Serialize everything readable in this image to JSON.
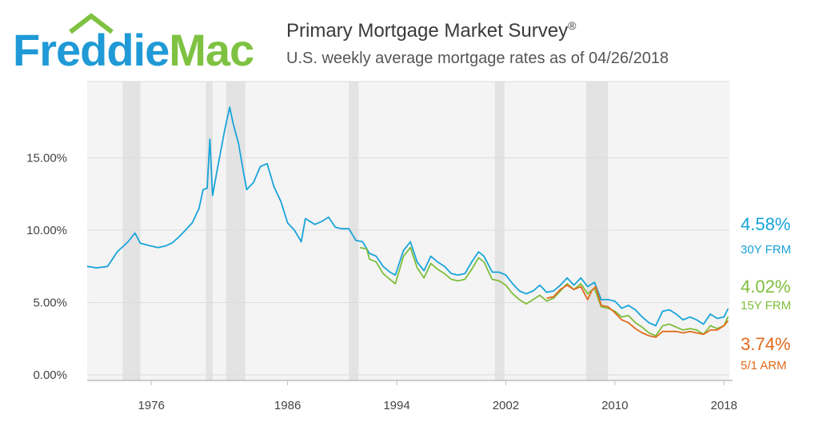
{
  "header": {
    "logo_text": "FreddieMac",
    "title": "Primary Mortgage Market Survey",
    "title_mark": "®",
    "subtitle": "U.S. weekly average mortgage rates as of 04/26/2018"
  },
  "colors": {
    "frm30": "#18a4d9",
    "frm15": "#7fbd3a",
    "arm51": "#e06a1b",
    "recession": "#e3e3e3",
    "logo_green": "#7fc242",
    "logo_blue": "#1f9ad6"
  },
  "latest": [
    {
      "value": "4.58%",
      "label": "30Y FRM",
      "color": "#18a4d9"
    },
    {
      "value": "4.02%",
      "label": "15Y FRM",
      "color": "#7fbd3a"
    },
    {
      "value": "3.74%",
      "label": "5/1 ARM",
      "color": "#e06a1b"
    }
  ],
  "chart_data": {
    "type": "line",
    "title": "Primary Mortgage Market Survey",
    "subtitle": "U.S. weekly average mortgage rates as of 04/26/2018",
    "x_ticks": [
      "1976",
      "1986",
      "1994",
      "2002",
      "2010",
      "2018"
    ],
    "y_ticks": [
      "0.00%",
      "5.00%",
      "10.00%",
      "15.00%"
    ],
    "xlim": [
      1971.3,
      2018.4
    ],
    "ylim": [
      0,
      20
    ],
    "recessions": [
      [
        1973.9,
        1975.2
      ],
      [
        1980.0,
        1980.5
      ],
      [
        1981.5,
        1982.9
      ],
      [
        1990.5,
        1991.2
      ],
      [
        2001.2,
        2001.9
      ],
      [
        2007.9,
        2009.5
      ]
    ],
    "series": [
      {
        "name": "30Y FRM",
        "x": [
          1971.3,
          1972.0,
          1972.8,
          1973.5,
          1974.3,
          1974.8,
          1975.2,
          1975.6,
          1976.0,
          1976.5,
          1977.0,
          1977.5,
          1978.0,
          1978.5,
          1979.0,
          1979.5,
          1979.8,
          1980.1,
          1980.3,
          1980.5,
          1980.8,
          1981.0,
          1981.4,
          1981.75,
          1982.0,
          1982.4,
          1982.8,
          1983.0,
          1983.5,
          1984.0,
          1984.5,
          1985.0,
          1985.5,
          1986.0,
          1986.5,
          1987.0,
          1987.3,
          1988.0,
          1988.5,
          1989.0,
          1989.5,
          1990.0,
          1990.5,
          1991.0,
          1991.5,
          1992.0,
          1992.5,
          1993.0,
          1993.5,
          1993.9,
          1994.5,
          1995.0,
          1995.5,
          1996.0,
          1996.5,
          1997.0,
          1997.5,
          1998.0,
          1998.5,
          1999.0,
          1999.5,
          2000.0,
          2000.4,
          2001.0,
          2001.5,
          2002.0,
          2002.5,
          2003.0,
          2003.5,
          2004.0,
          2004.5,
          2005.0,
          2005.5,
          2006.0,
          2006.5,
          2007.0,
          2007.5,
          2008.0,
          2008.5,
          2009.0,
          2009.5,
          2010.0,
          2010.5,
          2011.0,
          2011.5,
          2012.0,
          2012.5,
          2013.0,
          2013.5,
          2014.0,
          2014.5,
          2015.0,
          2015.5,
          2016.0,
          2016.5,
          2017.0,
          2017.5,
          2018.0,
          2018.3
        ],
        "y": [
          7.5,
          7.4,
          7.5,
          8.5,
          9.2,
          9.8,
          9.1,
          9.0,
          8.9,
          8.8,
          8.9,
          9.1,
          9.5,
          10.0,
          10.5,
          11.5,
          12.8,
          12.9,
          16.3,
          12.4,
          14.0,
          15.0,
          17.0,
          18.5,
          17.4,
          16.0,
          13.8,
          12.8,
          13.3,
          14.4,
          14.6,
          13.0,
          12.0,
          10.5,
          10.0,
          9.2,
          10.8,
          10.4,
          10.6,
          10.9,
          10.2,
          10.1,
          10.1,
          9.3,
          9.2,
          8.4,
          8.2,
          7.5,
          7.1,
          6.9,
          8.6,
          9.2,
          7.8,
          7.2,
          8.2,
          7.8,
          7.5,
          7.0,
          6.9,
          7.0,
          7.8,
          8.5,
          8.2,
          7.1,
          7.1,
          6.9,
          6.3,
          5.8,
          5.6,
          5.8,
          6.2,
          5.7,
          5.8,
          6.2,
          6.7,
          6.2,
          6.7,
          6.1,
          6.4,
          5.2,
          5.2,
          5.1,
          4.6,
          4.8,
          4.5,
          4.0,
          3.6,
          3.4,
          4.4,
          4.5,
          4.2,
          3.8,
          4.0,
          3.8,
          3.5,
          4.2,
          3.9,
          4.0,
          4.58
        ]
      },
      {
        "name": "15Y FRM",
        "x": [
          1991.3,
          1991.8,
          1992.0,
          1992.5,
          1993.0,
          1993.5,
          1993.9,
          1994.5,
          1995.0,
          1995.5,
          1996.0,
          1996.5,
          1997.0,
          1997.5,
          1998.0,
          1998.5,
          1999.0,
          1999.5,
          2000.0,
          2000.4,
          2001.0,
          2001.5,
          2002.0,
          2002.5,
          2003.0,
          2003.5,
          2004.0,
          2004.5,
          2005.0,
          2005.5,
          2006.0,
          2006.5,
          2007.0,
          2007.5,
          2008.0,
          2008.5,
          2009.0,
          2009.5,
          2010.0,
          2010.5,
          2011.0,
          2011.5,
          2012.0,
          2012.5,
          2013.0,
          2013.5,
          2014.0,
          2014.5,
          2015.0,
          2015.5,
          2016.0,
          2016.5,
          2017.0,
          2017.5,
          2018.0,
          2018.3
        ],
        "y": [
          8.8,
          8.7,
          8.0,
          7.8,
          7.0,
          6.6,
          6.3,
          8.2,
          8.8,
          7.4,
          6.7,
          7.7,
          7.3,
          7.0,
          6.6,
          6.5,
          6.6,
          7.3,
          8.1,
          7.8,
          6.6,
          6.5,
          6.2,
          5.6,
          5.2,
          4.9,
          5.2,
          5.5,
          5.1,
          5.3,
          5.8,
          6.3,
          5.9,
          6.3,
          5.6,
          6.0,
          4.7,
          4.6,
          4.4,
          4.0,
          4.1,
          3.6,
          3.3,
          2.9,
          2.7,
          3.4,
          3.5,
          3.3,
          3.1,
          3.2,
          3.1,
          2.8,
          3.4,
          3.2,
          3.4,
          4.02
        ]
      },
      {
        "name": "5/1 ARM",
        "x": [
          2005.0,
          2005.5,
          2006.0,
          2006.5,
          2007.0,
          2007.5,
          2008.0,
          2008.3,
          2008.6,
          2009.0,
          2009.5,
          2010.0,
          2010.5,
          2011.0,
          2011.5,
          2012.0,
          2012.5,
          2013.0,
          2013.5,
          2014.0,
          2014.5,
          2015.0,
          2015.5,
          2016.0,
          2016.5,
          2017.0,
          2017.5,
          2018.0,
          2018.3
        ],
        "y": [
          5.3,
          5.4,
          5.9,
          6.2,
          5.9,
          6.1,
          5.2,
          5.8,
          6.1,
          4.8,
          4.7,
          4.3,
          3.8,
          3.6,
          3.2,
          2.9,
          2.7,
          2.6,
          3.0,
          3.0,
          3.0,
          2.9,
          3.0,
          2.9,
          2.8,
          3.1,
          3.1,
          3.4,
          3.74
        ]
      }
    ]
  }
}
